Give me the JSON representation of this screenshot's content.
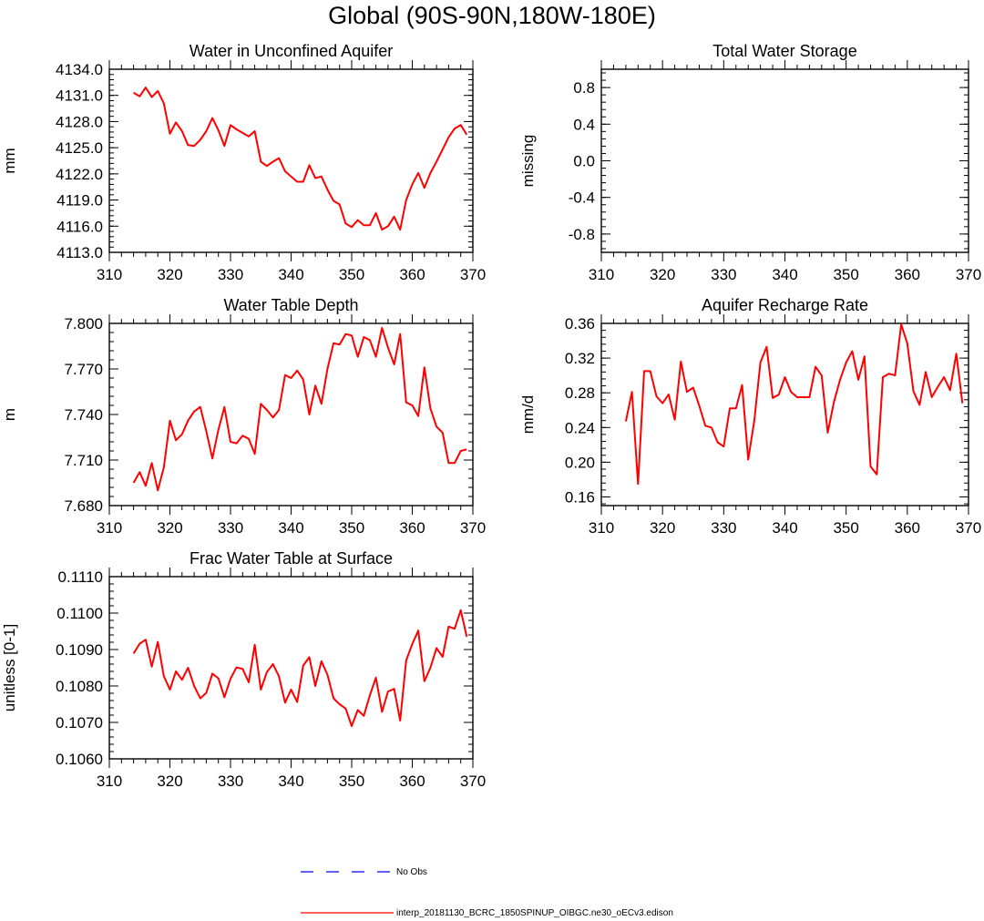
{
  "figure": {
    "title": "Global (90S-90N,180W-180E)"
  },
  "legend": {
    "placement": "bottom-center",
    "items": [
      {
        "label": "No Obs",
        "color": "#0000ff",
        "style": "dashed"
      },
      {
        "label": "interp_20181130_BCRC_1850SPINUP_OIBGC.ne30_oECv3.edison",
        "color": "#ff0000",
        "style": "solid"
      }
    ]
  },
  "chart_data": [
    {
      "type": "line",
      "title": "Water in Unconfined Aquifer",
      "ylabel": "mm",
      "xlim": [
        310,
        370
      ],
      "ylim": [
        4113,
        4134
      ],
      "xticks": [
        "310",
        "320",
        "330",
        "340",
        "350",
        "360",
        "370"
      ],
      "yticks": [
        "4113.0",
        "4116.0",
        "4119.0",
        "4122.0",
        "4125.0",
        "4128.0",
        "4131.0",
        "4134.0"
      ],
      "series": [
        {
          "color": "#ff0000",
          "x": [
            314,
            315,
            316,
            317,
            318,
            319,
            320,
            321,
            322,
            323,
            324,
            325,
            326,
            327,
            328,
            329,
            330,
            331,
            332,
            333,
            334,
            335,
            336,
            337,
            338,
            339,
            340,
            341,
            342,
            343,
            344,
            345,
            346,
            347,
            348,
            349,
            350,
            351,
            352,
            353,
            354,
            355,
            356,
            357,
            358,
            359,
            360,
            361,
            362,
            363,
            364,
            365,
            366,
            367,
            368,
            369
          ],
          "y": [
            4131.3,
            4130.9,
            4131.9,
            4130.8,
            4131.5,
            4130.1,
            4126.6,
            4127.9,
            4126.9,
            4125.3,
            4125.2,
            4125.9,
            4126.9,
            4128.4,
            4127.0,
            4125.2,
            4127.6,
            4127.1,
            4126.7,
            4126.3,
            4126.9,
            4123.4,
            4122.9,
            4123.4,
            4123.8,
            4122.3,
            4121.7,
            4121.1,
            4121.1,
            4123.0,
            4121.5,
            4121.7,
            4120.2,
            4118.9,
            4118.5,
            4116.3,
            4115.9,
            4116.7,
            4116.1,
            4116.1,
            4117.5,
            4115.6,
            4116.0,
            4117.1,
            4115.6,
            4119.0,
            4120.8,
            4122.1,
            4120.4,
            4122.1,
            4123.4,
            4124.8,
            4126.2,
            4127.2,
            4127.6,
            4126.5
          ]
        }
      ]
    },
    {
      "type": "line",
      "title": "Total Water Storage",
      "ylabel": "missing",
      "xlim": [
        310,
        370
      ],
      "ylim": [
        -1,
        1
      ],
      "xticks": [
        "310",
        "320",
        "330",
        "340",
        "350",
        "360",
        "370"
      ],
      "yticks": [
        "-0.8",
        "-0.4",
        "0.0",
        "0.4",
        "0.8"
      ],
      "series": []
    },
    {
      "type": "line",
      "title": "Water Table Depth",
      "ylabel": "m",
      "xlim": [
        310,
        370
      ],
      "ylim": [
        7.68,
        7.8
      ],
      "xticks": [
        "310",
        "320",
        "330",
        "340",
        "350",
        "360",
        "370"
      ],
      "yticks": [
        "7.680",
        "7.710",
        "7.740",
        "7.770",
        "7.800"
      ],
      "series": [
        {
          "color": "#ff0000",
          "x": [
            314,
            315,
            316,
            317,
            318,
            319,
            320,
            321,
            322,
            323,
            324,
            325,
            326,
            327,
            328,
            329,
            330,
            331,
            332,
            333,
            334,
            335,
            336,
            337,
            338,
            339,
            340,
            341,
            342,
            343,
            344,
            345,
            346,
            347,
            348,
            349,
            350,
            351,
            352,
            353,
            354,
            355,
            356,
            357,
            358,
            359,
            360,
            361,
            362,
            363,
            364,
            365,
            366,
            367,
            368,
            369
          ],
          "y": [
            7.695,
            7.702,
            7.693,
            7.708,
            7.69,
            7.705,
            7.736,
            7.723,
            7.727,
            7.736,
            7.742,
            7.745,
            7.729,
            7.711,
            7.73,
            7.745,
            7.722,
            7.721,
            7.726,
            7.724,
            7.714,
            7.747,
            7.743,
            7.738,
            7.743,
            7.766,
            7.764,
            7.769,
            7.763,
            7.74,
            7.759,
            7.747,
            7.77,
            7.787,
            7.786,
            7.793,
            7.792,
            7.778,
            7.791,
            7.789,
            7.778,
            7.797,
            7.784,
            7.773,
            7.793,
            7.748,
            7.746,
            7.739,
            7.771,
            7.744,
            7.732,
            7.728,
            7.708,
            7.708,
            7.716,
            7.717
          ]
        }
      ]
    },
    {
      "type": "line",
      "title": "Aquifer Recharge Rate",
      "ylabel": "mm/d",
      "xlim": [
        310,
        370
      ],
      "ylim": [
        0.15,
        0.36
      ],
      "xticks": [
        "310",
        "320",
        "330",
        "340",
        "350",
        "360",
        "370"
      ],
      "yticks": [
        "0.16",
        "0.20",
        "0.24",
        "0.28",
        "0.32",
        "0.36"
      ],
      "series": [
        {
          "color": "#ff0000",
          "x": [
            314,
            315,
            316,
            317,
            318,
            319,
            320,
            321,
            322,
            323,
            324,
            325,
            326,
            327,
            328,
            329,
            330,
            331,
            332,
            333,
            334,
            335,
            336,
            337,
            338,
            339,
            340,
            341,
            342,
            343,
            344,
            345,
            346,
            347,
            348,
            349,
            350,
            351,
            352,
            353,
            354,
            355,
            356,
            357,
            358,
            359,
            360,
            361,
            362,
            363,
            364,
            365,
            366,
            367,
            368,
            369
          ],
          "y": [
            0.247,
            0.281,
            0.175,
            0.305,
            0.305,
            0.276,
            0.268,
            0.278,
            0.249,
            0.316,
            0.281,
            0.286,
            0.265,
            0.242,
            0.24,
            0.223,
            0.218,
            0.262,
            0.262,
            0.289,
            0.203,
            0.248,
            0.315,
            0.333,
            0.274,
            0.278,
            0.298,
            0.281,
            0.275,
            0.275,
            0.275,
            0.31,
            0.3,
            0.234,
            0.269,
            0.295,
            0.315,
            0.328,
            0.295,
            0.322,
            0.195,
            0.186,
            0.298,
            0.302,
            0.3,
            0.359,
            0.337,
            0.282,
            0.266,
            0.304,
            0.275,
            0.287,
            0.298,
            0.283,
            0.325,
            0.268
          ]
        }
      ]
    },
    {
      "type": "line",
      "title": "Frac Water Table at Surface",
      "ylabel": "unitless [0-1]",
      "xlim": [
        310,
        370
      ],
      "ylim": [
        0.106,
        0.111
      ],
      "xticks": [
        "310",
        "320",
        "330",
        "340",
        "350",
        "360",
        "370"
      ],
      "yticks": [
        "0.1060",
        "0.1070",
        "0.1080",
        "0.1090",
        "0.1100",
        "0.1110"
      ],
      "series": [
        {
          "color": "#ff0000",
          "x": [
            314,
            315,
            316,
            317,
            318,
            319,
            320,
            321,
            322,
            323,
            324,
            325,
            326,
            327,
            328,
            329,
            330,
            331,
            332,
            333,
            334,
            335,
            336,
            337,
            338,
            339,
            340,
            341,
            342,
            343,
            344,
            345,
            346,
            347,
            348,
            349,
            350,
            351,
            352,
            353,
            354,
            355,
            356,
            357,
            358,
            359,
            360,
            361,
            362,
            363,
            364,
            365,
            366,
            367,
            368,
            369
          ],
          "y": [
            0.10889,
            0.10916,
            0.10927,
            0.10853,
            0.10921,
            0.10827,
            0.1079,
            0.1084,
            0.10817,
            0.1085,
            0.108,
            0.10766,
            0.10781,
            0.10834,
            0.10821,
            0.10769,
            0.1082,
            0.10851,
            0.10847,
            0.1081,
            0.10913,
            0.1079,
            0.10838,
            0.1086,
            0.10826,
            0.10754,
            0.1079,
            0.10756,
            0.10856,
            0.10879,
            0.108,
            0.10868,
            0.10831,
            0.10766,
            0.1075,
            0.10738,
            0.1069,
            0.10734,
            0.10718,
            0.10774,
            0.10823,
            0.10729,
            0.10785,
            0.10792,
            0.10705,
            0.1087,
            0.10915,
            0.10952,
            0.10813,
            0.1085,
            0.10904,
            0.1088,
            0.10963,
            0.10957,
            0.11008,
            0.10935
          ]
        }
      ]
    }
  ]
}
